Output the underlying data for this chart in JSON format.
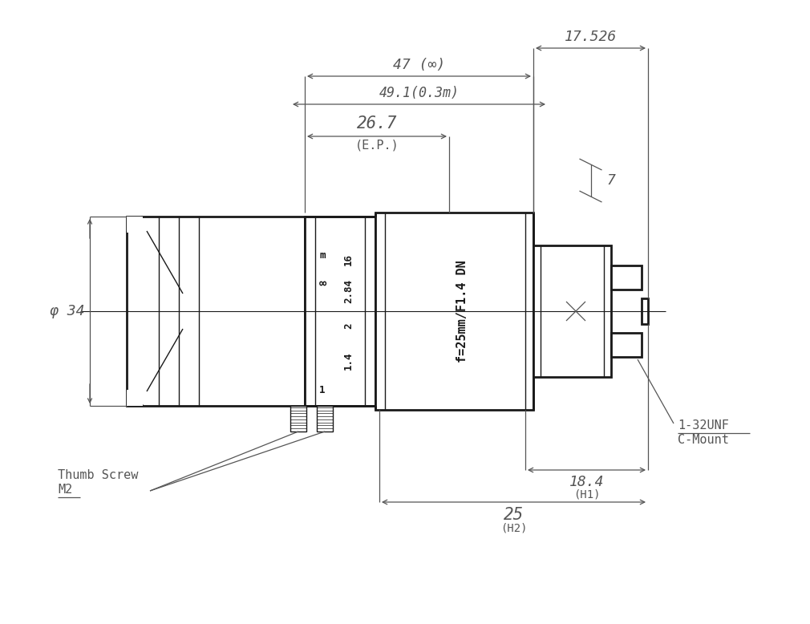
{
  "bg_color": "#ffffff",
  "line_color": "#1a1a1a",
  "dim_color": "#555555",
  "dim_font_size": 13,
  "label_font_size": 11,
  "lens_label": "f=25mm/F1.4 DN",
  "c_mount_label": "1-32UNF\nC-Mount",
  "thumb_screw_label": "Thumb Screw\nM2",
  "dim_47": "47 (∞)",
  "dim_491": "49.1(0.3m)",
  "dim_267": "26.7",
  "dim_ep": "(E.P.)",
  "dim_17526": "17.526",
  "dim_7": "7",
  "dim_phi34": "φ 34",
  "dim_184": "18.4",
  "dim_h1": "(H1)",
  "dim_25": "25",
  "dim_h2": "(H2)"
}
